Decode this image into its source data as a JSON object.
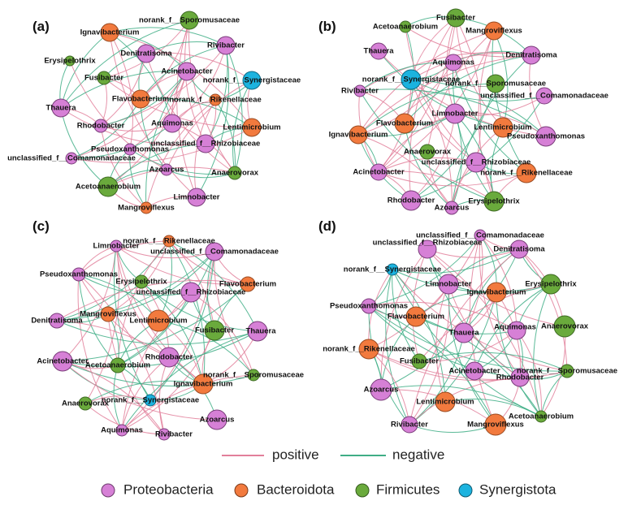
{
  "colors": {
    "Proteobacteria": "#d680d6",
    "Bacteroidota": "#f27a3e",
    "Firmicutes": "#6aaa3c",
    "Synergistota": "#1cb3df",
    "positive": "#e2809b",
    "negative": "#3fae86"
  },
  "panels": [
    {
      "label": "(a)",
      "nodes": [
        {
          "name": "Ignavibacterium",
          "phylum": "Bacteroidota"
        },
        {
          "name": "norank_f__Sporomusaceae",
          "phylum": "Firmicutes"
        },
        {
          "name": "Rivibacter",
          "phylum": "Proteobacteria"
        },
        {
          "name": "Denitratisoma",
          "phylum": "Proteobacteria"
        },
        {
          "name": "Erysipelothrix",
          "phylum": "Firmicutes"
        },
        {
          "name": "Acinetobacter",
          "phylum": "Proteobacteria"
        },
        {
          "name": "Fusibacter",
          "phylum": "Firmicutes"
        },
        {
          "name": "norank_f__Synergistaceae",
          "phylum": "Synergistota"
        },
        {
          "name": "Flavobacterium",
          "phylum": "Bacteroidota"
        },
        {
          "name": "norank_f__Rikenellaceae",
          "phylum": "Bacteroidota"
        },
        {
          "name": "Thauera",
          "phylum": "Proteobacteria"
        },
        {
          "name": "Aquimonas",
          "phylum": "Proteobacteria"
        },
        {
          "name": "Rhodobacter",
          "phylum": "Proteobacteria"
        },
        {
          "name": "Lentimicrobium",
          "phylum": "Bacteroidota"
        },
        {
          "name": "unclassified_f__Rhizobiaceae",
          "phylum": "Proteobacteria"
        },
        {
          "name": "Pseudoxanthomonas",
          "phylum": "Proteobacteria"
        },
        {
          "name": "unclassified_f__Comamonadaceae",
          "phylum": "Proteobacteria"
        },
        {
          "name": "Azoarcus",
          "phylum": "Proteobacteria"
        },
        {
          "name": "Anaerovorax",
          "phylum": "Firmicutes"
        },
        {
          "name": "Acetoanaerobium",
          "phylum": "Firmicutes"
        },
        {
          "name": "Limnobacter",
          "phylum": "Proteobacteria"
        },
        {
          "name": "Mangroviflexus",
          "phylum": "Bacteroidota"
        }
      ]
    },
    {
      "label": "(b)",
      "nodes": [
        {
          "name": "Fusibacter",
          "phylum": "Firmicutes"
        },
        {
          "name": "Acetoanaerobium",
          "phylum": "Firmicutes"
        },
        {
          "name": "Mangroviflexus",
          "phylum": "Bacteroidota"
        },
        {
          "name": "Thauera",
          "phylum": "Proteobacteria"
        },
        {
          "name": "Denitratisoma",
          "phylum": "Proteobacteria"
        },
        {
          "name": "Aquimonas",
          "phylum": "Proteobacteria"
        },
        {
          "name": "norank_f__Synergistaceae",
          "phylum": "Synergistota"
        },
        {
          "name": "Rivibacter",
          "phylum": "Proteobacteria"
        },
        {
          "name": "norank_f__Sporomusaceae",
          "phylum": "Firmicutes"
        },
        {
          "name": "unclassified_f__Comamonadaceae",
          "phylum": "Proteobacteria"
        },
        {
          "name": "Limnobacter",
          "phylum": "Proteobacteria"
        },
        {
          "name": "Flavobacterium",
          "phylum": "Bacteroidota"
        },
        {
          "name": "Lentimicrobium",
          "phylum": "Bacteroidota"
        },
        {
          "name": "Ignavibacterium",
          "phylum": "Bacteroidota"
        },
        {
          "name": "Pseudoxanthomonas",
          "phylum": "Proteobacteria"
        },
        {
          "name": "Anaerovorax",
          "phylum": "Firmicutes"
        },
        {
          "name": "unclassified_f__Rhizobiaceae",
          "phylum": "Proteobacteria"
        },
        {
          "name": "Acinetobacter",
          "phylum": "Proteobacteria"
        },
        {
          "name": "norank_f__Rikenellaceae",
          "phylum": "Bacteroidota"
        },
        {
          "name": "Rhodobacter",
          "phylum": "Proteobacteria"
        },
        {
          "name": "Azoarcus",
          "phylum": "Proteobacteria"
        },
        {
          "name": "Erysipelothrix",
          "phylum": "Firmicutes"
        }
      ]
    },
    {
      "label": "(c)",
      "nodes": [
        {
          "name": "norank_f__Rikenellaceae",
          "phylum": "Bacteroidota"
        },
        {
          "name": "Limnobacter",
          "phylum": "Proteobacteria"
        },
        {
          "name": "unclassified_f__Comamonadaceae",
          "phylum": "Proteobacteria"
        },
        {
          "name": "Pseudoxanthomonas",
          "phylum": "Proteobacteria"
        },
        {
          "name": "Erysipelothrix",
          "phylum": "Firmicutes"
        },
        {
          "name": "Flavobacterium",
          "phylum": "Bacteroidota"
        },
        {
          "name": "unclassified_f__Rhizobiaceae",
          "phylum": "Proteobacteria"
        },
        {
          "name": "Mangroviflexus",
          "phylum": "Bacteroidota"
        },
        {
          "name": "Denitratisoma",
          "phylum": "Proteobacteria"
        },
        {
          "name": "Lentimicrobium",
          "phylum": "Bacteroidota"
        },
        {
          "name": "Fusibacter",
          "phylum": "Firmicutes"
        },
        {
          "name": "Thauera",
          "phylum": "Proteobacteria"
        },
        {
          "name": "Acinetobacter",
          "phylum": "Proteobacteria"
        },
        {
          "name": "Rhodobacter",
          "phylum": "Proteobacteria"
        },
        {
          "name": "Acetoanaerobium",
          "phylum": "Firmicutes"
        },
        {
          "name": "norank_f__Sporomusaceae",
          "phylum": "Firmicutes"
        },
        {
          "name": "Ignavibacterium",
          "phylum": "Bacteroidota"
        },
        {
          "name": "norank_f__Synergistaceae",
          "phylum": "Synergistota"
        },
        {
          "name": "Anaerovorax",
          "phylum": "Firmicutes"
        },
        {
          "name": "Azoarcus",
          "phylum": "Proteobacteria"
        },
        {
          "name": "Aquimonas",
          "phylum": "Proteobacteria"
        },
        {
          "name": "Rivibacter",
          "phylum": "Proteobacteria"
        }
      ]
    },
    {
      "label": "(d)",
      "nodes": [
        {
          "name": "unclassified_f__Comamonadaceae",
          "phylum": "Proteobacteria"
        },
        {
          "name": "unclassified_f__Rhizobiaceae",
          "phylum": "Proteobacteria"
        },
        {
          "name": "Denitratisoma",
          "phylum": "Proteobacteria"
        },
        {
          "name": "norank_f__Synergistaceae",
          "phylum": "Synergistota"
        },
        {
          "name": "Limnobacter",
          "phylum": "Proteobacteria"
        },
        {
          "name": "Ignavibacterium",
          "phylum": "Bacteroidota"
        },
        {
          "name": "Erysipelothrix",
          "phylum": "Firmicutes"
        },
        {
          "name": "Pseudoxanthomonas",
          "phylum": "Proteobacteria"
        },
        {
          "name": "Flavobacterium",
          "phylum": "Bacteroidota"
        },
        {
          "name": "Anaerovorax",
          "phylum": "Firmicutes"
        },
        {
          "name": "Thauera",
          "phylum": "Proteobacteria"
        },
        {
          "name": "Aquimonas",
          "phylum": "Proteobacteria"
        },
        {
          "name": "norank_f__Rikenellaceae",
          "phylum": "Bacteroidota"
        },
        {
          "name": "Fusibacter",
          "phylum": "Firmicutes"
        },
        {
          "name": "Acinetobacter",
          "phylum": "Proteobacteria"
        },
        {
          "name": "norank_f__Sporomusaceae",
          "phylum": "Firmicutes"
        },
        {
          "name": "Rhodobacter",
          "phylum": "Proteobacteria"
        },
        {
          "name": "Azoarcus",
          "phylum": "Proteobacteria"
        },
        {
          "name": "Lentimicrobium",
          "phylum": "Bacteroidota"
        },
        {
          "name": "Acetoanaerobium",
          "phylum": "Firmicutes"
        },
        {
          "name": "Rivibacter",
          "phylum": "Proteobacteria"
        },
        {
          "name": "Mangroviflexus",
          "phylum": "Bacteroidota"
        }
      ]
    }
  ],
  "legend": {
    "edges": [
      {
        "label": "positive",
        "key": "positive"
      },
      {
        "label": "negative",
        "key": "negative"
      }
    ],
    "phyla": [
      {
        "label": "Proteobacteria"
      },
      {
        "label": "Bacteroidota"
      },
      {
        "label": "Firmicutes"
      },
      {
        "label": "Synergistota"
      }
    ]
  }
}
